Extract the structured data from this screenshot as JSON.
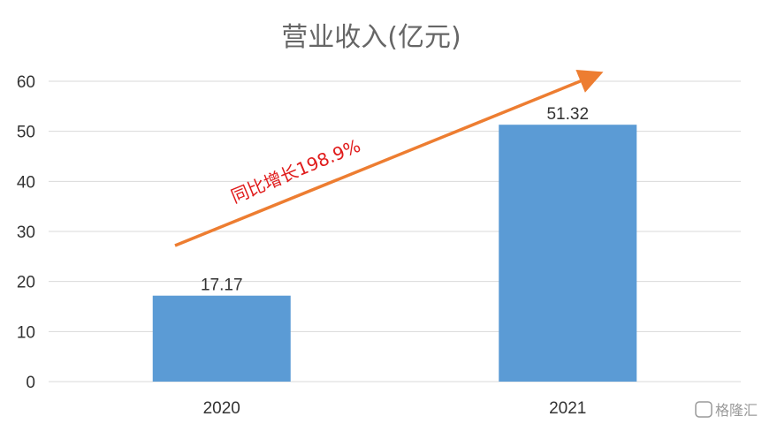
{
  "chart_data": {
    "type": "bar",
    "title": "营业收入(亿元)",
    "categories": [
      "2020",
      "2021"
    ],
    "values": [
      17.17,
      51.32
    ],
    "value_labels": [
      "17.17",
      "51.32"
    ],
    "ylim": [
      0,
      60
    ],
    "yticks": [
      "0",
      "10",
      "20",
      "30",
      "40",
      "50",
      "60"
    ],
    "grid": true,
    "bar_color": "#5b9bd5",
    "annotation": {
      "text": "同比增长198.9%",
      "color": "#e01b1b",
      "arrow_color": "#ed7d31"
    }
  },
  "watermark": {
    "text": "格隆汇"
  }
}
